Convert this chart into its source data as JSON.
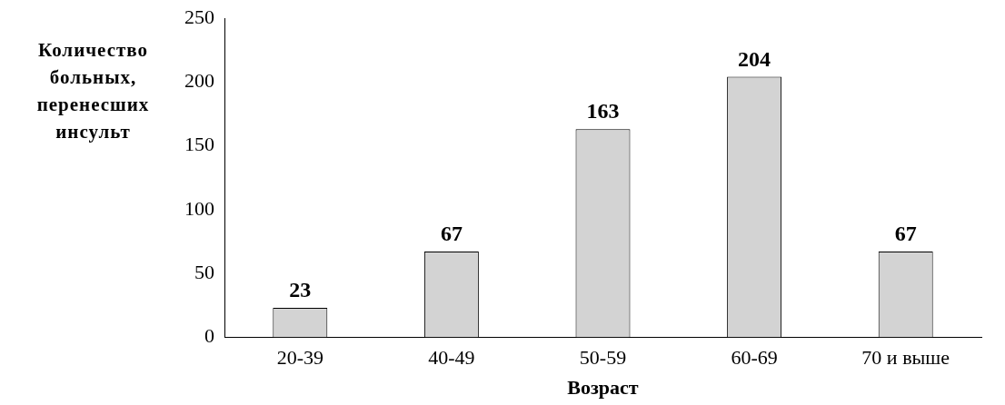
{
  "chart_data": {
    "type": "bar",
    "categories": [
      "20-39",
      "40-49",
      "50-59",
      "60-69",
      "70 и выше"
    ],
    "values": [
      23,
      67,
      163,
      204,
      67
    ],
    "color": "#d3d3d3",
    "ylabel": "Количество больных, перенесших инсульт",
    "xlabel": "Возраст",
    "ylim": [
      0,
      250
    ],
    "yticks": [
      0,
      50,
      100,
      150,
      200,
      250
    ],
    "grid": false,
    "legend": false,
    "data_labels": true
  }
}
